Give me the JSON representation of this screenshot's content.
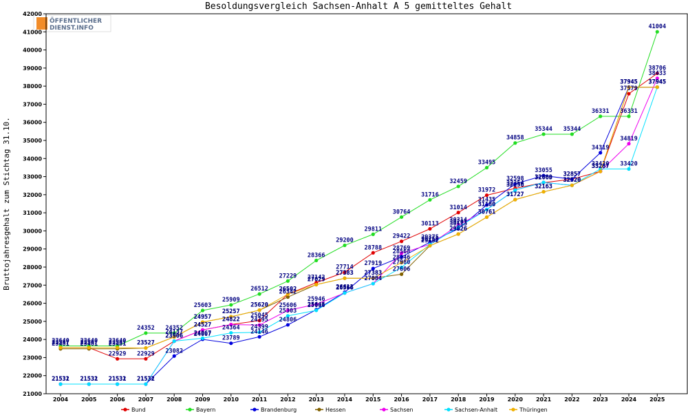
{
  "logo": {
    "line1": "ÖFFENTLICHER",
    "line2": "DIENST.INFO",
    "colors": {
      "box": "#f28c28",
      "text": "#5a6e8c"
    }
  },
  "chart_data": {
    "type": "line",
    "title": "Besoldungsvergleich Sachsen-Anhalt A 5 gemitteltes Gehalt",
    "xlabel": "",
    "ylabel": "Bruttojahresgehalt zum Stichtag 31.10.",
    "ylim": [
      21000,
      42000
    ],
    "yticks": [
      21000,
      22000,
      23000,
      24000,
      25000,
      26000,
      27000,
      28000,
      29000,
      30000,
      31000,
      32000,
      33000,
      34000,
      35000,
      36000,
      37000,
      38000,
      39000,
      40000,
      41000,
      42000
    ],
    "categories": [
      "2004",
      "2005",
      "2006",
      "2007",
      "2008",
      "2009",
      "2010",
      "2011",
      "2012",
      "2013",
      "2014",
      "2015",
      "2016",
      "2017",
      "2018",
      "2019",
      "2020",
      "2021",
      "2022",
      "2023",
      "2024",
      "2025"
    ],
    "grid": false,
    "legend_position": "bottom",
    "series": [
      {
        "name": "Bund",
        "color": "#e00000",
        "values": [
          23547,
          23547,
          22929,
          22929,
          23906,
          24527,
          24822,
          25045,
          26502,
          27142,
          27714,
          28788,
          29422,
          30113,
          31014,
          31972,
          32354,
          32663,
          32857,
          33287,
          37579,
          38706
        ]
      },
      {
        "name": "Bayern",
        "color": "#22dd22",
        "values": [
          23640,
          23640,
          23640,
          24352,
          24352,
          25603,
          25909,
          26512,
          27229,
          28366,
          29200,
          29811,
          30764,
          31716,
          32459,
          33495,
          34858,
          35344,
          35344,
          36331,
          36331,
          41004
        ]
      },
      {
        "name": "Brandenburg",
        "color": "#0000dd",
        "values": [
          21532,
          21532,
          21532,
          21532,
          23082,
          24007,
          23789,
          24146,
          24806,
          25645,
          26612,
          27919,
          28568,
          29375,
          30113,
          31435,
          32598,
          33055,
          32857,
          34319,
          37945,
          37945
        ]
      },
      {
        "name": "Hessen",
        "color": "#806000",
        "values": [
          23481,
          23481,
          23481,
          23527,
          24137,
          24957,
          25257,
          25620,
          26342,
          27029,
          27383,
          27383,
          27606,
          29182,
          29826,
          30761,
          31727,
          32163,
          32520,
          33287,
          37945,
          37945
        ]
      },
      {
        "name": "Sachsen",
        "color": "#ee00ee",
        "values": [
          21531,
          21531,
          21531,
          21532,
          23906,
          24527,
          24822,
          24795,
          25606,
          25946,
          26566,
          27084,
          28769,
          29250,
          30314,
          31180,
          32256,
          32680,
          32520,
          33287,
          34819,
          38433
        ]
      },
      {
        "name": "Sachsen-Anhalt",
        "color": "#00e0ff",
        "values": [
          21531,
          21531,
          21531,
          21531,
          23906,
          24067,
          24364,
          24399,
          25303,
          25606,
          26566,
          27084,
          27980,
          29250,
          30201,
          31180,
          32256,
          32680,
          32520,
          33420,
          33420,
          37945
        ]
      },
      {
        "name": "Thüringen",
        "color": "#f0b000",
        "values": [
          23547,
          23547,
          23547,
          23527,
          24137,
          24957,
          25257,
          25620,
          26502,
          27029,
          27383,
          27383,
          28246,
          29182,
          29826,
          30761,
          31727,
          32163,
          32520,
          33287,
          37945,
          37945
        ]
      }
    ]
  }
}
